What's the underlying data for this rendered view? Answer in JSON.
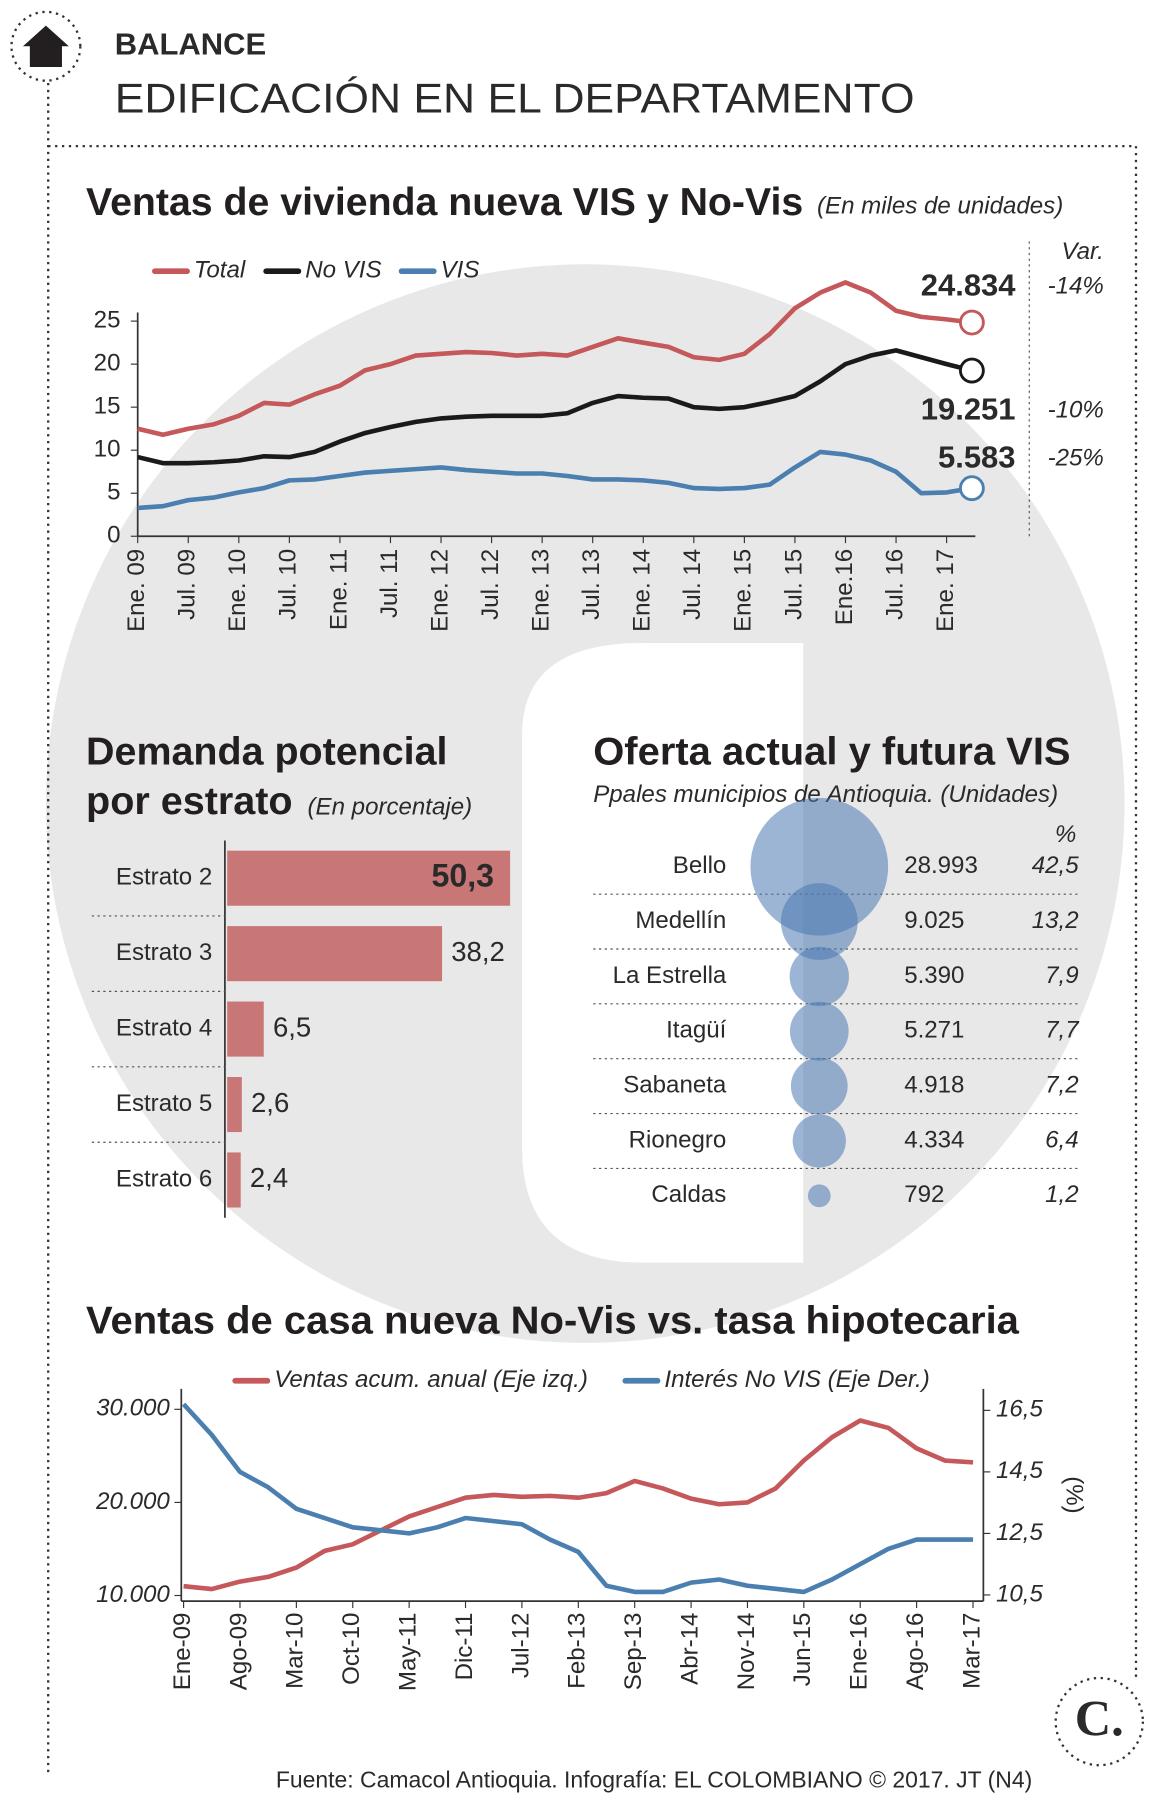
{
  "header": {
    "section": "BALANCE",
    "title": "EDIFICACIÓN EN EL DEPARTAMENTO"
  },
  "chart_data": [
    {
      "type": "line",
      "title": "Ventas de vivienda nueva VIS y No-Vis",
      "subtitle": "(En miles de unidades)",
      "variation_header": "Var.",
      "legend": "top-left",
      "categories": [
        "Ene. 09",
        null,
        "Jul. 09",
        null,
        "Ene. 10",
        null,
        "Jul. 10",
        null,
        "Ene. 11",
        null,
        "Jul. 11",
        null,
        "Ene. 12",
        null,
        "Jul. 12",
        null,
        "Ene. 13",
        null,
        "Jul. 13",
        null,
        "Ene. 14",
        null,
        "Jul. 14",
        null,
        "Ene. 15",
        null,
        "Jul. 15",
        null,
        "Ene.16",
        null,
        "Jul. 16",
        null,
        "Ene. 17",
        null
      ],
      "series": [
        {
          "name": "Total",
          "color": "#c4585a",
          "variation": "-14%",
          "values": [
            12.5,
            11.8,
            12.5,
            13,
            14,
            15.5,
            15.3,
            16.5,
            17.5,
            19.3,
            20,
            21,
            21.2,
            21.4,
            21.3,
            21,
            21.2,
            21,
            22,
            23,
            22.5,
            22,
            20.8,
            20.5,
            21.2,
            23.5,
            26.5,
            28.3,
            29.5,
            28.3,
            26.2,
            25.5,
            25.2,
            24.834
          ],
          "value_labels": [
            null,
            null,
            null,
            null,
            null,
            null,
            null,
            null,
            null,
            null,
            null,
            null,
            null,
            null,
            null,
            null,
            null,
            null,
            null,
            null,
            null,
            null,
            null,
            null,
            null,
            null,
            null,
            null,
            null,
            null,
            null,
            null,
            null,
            "24.834"
          ]
        },
        {
          "name": "No VIS",
          "color": "#1a1a1a",
          "variation": "-10%",
          "values": [
            9.2,
            8.5,
            8.5,
            8.6,
            8.8,
            9.3,
            9.2,
            9.8,
            11,
            12,
            12.7,
            13.3,
            13.7,
            13.9,
            14,
            14,
            14,
            14.3,
            15.5,
            16.3,
            16.1,
            16,
            15,
            14.8,
            15,
            15.6,
            16.3,
            18,
            20,
            21,
            21.6,
            20.8,
            20,
            19.251
          ],
          "value_labels": [
            null,
            null,
            null,
            null,
            null,
            null,
            null,
            null,
            null,
            null,
            null,
            null,
            null,
            null,
            null,
            null,
            null,
            null,
            null,
            null,
            null,
            null,
            null,
            null,
            null,
            null,
            null,
            null,
            null,
            null,
            null,
            null,
            null,
            "19.251"
          ]
        },
        {
          "name": "VIS",
          "color": "#4a7fb0",
          "variation": "-25%",
          "values": [
            3.3,
            3.5,
            4.2,
            4.5,
            5.1,
            5.6,
            6.5,
            6.6,
            7,
            7.4,
            7.6,
            7.8,
            8,
            7.7,
            7.5,
            7.3,
            7.3,
            7,
            6.6,
            6.6,
            6.5,
            6.2,
            5.6,
            5.5,
            5.6,
            6,
            8,
            9.8,
            9.5,
            8.8,
            7.5,
            5,
            5.1,
            5.583
          ],
          "value_labels": [
            null,
            null,
            null,
            null,
            null,
            null,
            null,
            null,
            null,
            null,
            null,
            null,
            null,
            null,
            null,
            null,
            null,
            null,
            null,
            null,
            null,
            null,
            null,
            null,
            null,
            null,
            null,
            null,
            null,
            null,
            null,
            null,
            null,
            "5.583"
          ]
        }
      ],
      "ylim": [
        0,
        26
      ],
      "yticks": [
        0,
        5,
        10,
        15,
        20,
        25
      ]
    },
    {
      "type": "bar",
      "title": [
        "Demanda potencial",
        "por estrato"
      ],
      "subtitle": "(En porcentaje)",
      "categories": [
        "Estrato 2",
        "Estrato 3",
        "Estrato 4",
        "Estrato 5",
        "Estrato 6"
      ],
      "values": [
        50.3,
        38.2,
        6.5,
        2.6,
        2.4
      ],
      "value_labels": [
        "50,3",
        "38,2",
        "6,5",
        "2,6",
        "2,4"
      ],
      "color": "#c97676",
      "xlim": [
        0,
        51
      ]
    },
    {
      "type": "bubble",
      "title": "Oferta actual y futura VIS",
      "subtitle": "Ppales municipios de Antioquia. (Unidades)",
      "share_header": "%",
      "categories": [
        "Bello",
        "Medellín",
        "La Estrella",
        "Itagüí",
        "Sabaneta",
        "Rionegro",
        "Caldas"
      ],
      "values": [
        28993,
        9025,
        5390,
        5271,
        4918,
        4334,
        792
      ],
      "value_labels": [
        "28.993",
        "9.025",
        "5.390",
        "5.271",
        "4.918",
        "4.334",
        "792"
      ],
      "shares": [
        42.5,
        13.2,
        7.9,
        7.7,
        7.2,
        6.4,
        1.2
      ],
      "share_labels": [
        "42,5",
        "13,2",
        "7,9",
        "7,7",
        "7,2",
        "6,4",
        "1,2"
      ],
      "color": "#4a78b0"
    },
    {
      "type": "line",
      "title": "Ventas de casa nueva No-Vis vs. tasa hipotecaria",
      "legend": "top-center",
      "y2_label": "(%)",
      "categories": [
        "Ene-09",
        null,
        "Ago-09",
        null,
        "Mar-10",
        null,
        "Oct-10",
        null,
        "May-11",
        null,
        "Dic-11",
        null,
        "Jul-12",
        null,
        "Feb-13",
        null,
        "Sep-13",
        null,
        "Abr-14",
        null,
        "Nov-14",
        null,
        "Jun-15",
        null,
        "Ene-16",
        null,
        "Ago-16",
        null,
        "Mar-17"
      ],
      "series": [
        {
          "name": "Ventas acum. anual (Eje izq.)",
          "color": "#c4585a",
          "axis": "y",
          "values": [
            11000,
            10700,
            11500,
            12000,
            13000,
            14800,
            15500,
            17000,
            18500,
            19500,
            20500,
            20800,
            20600,
            20700,
            20500,
            21000,
            22300,
            21500,
            20400,
            19800,
            20000,
            21500,
            24500,
            27000,
            28800,
            28000,
            25800,
            24500,
            24300
          ]
        },
        {
          "name": "Interés No VIS (Eje Der.)",
          "color": "#4a7fb0",
          "axis": "y2",
          "values": [
            16.7,
            15.7,
            14.5,
            14,
            13.3,
            13,
            12.7,
            12.6,
            12.5,
            12.7,
            13,
            12.9,
            12.8,
            12.3,
            11.9,
            10.8,
            10.6,
            10.6,
            10.9,
            11,
            10.8,
            10.7,
            10.6,
            11,
            11.5,
            12,
            12.3,
            12.3,
            12.3
          ]
        }
      ],
      "ylim": [
        9400,
        32200
      ],
      "yticks": [
        {
          "value": 10000,
          "label": "10.000"
        },
        {
          "value": 20000,
          "label": "20.000"
        },
        {
          "value": 30000,
          "label": "30.000"
        }
      ],
      "y2lim": [
        10.3,
        17.2
      ],
      "y2ticks": [
        {
          "value": 10.5,
          "label": "10,5"
        },
        {
          "value": 12.5,
          "label": "12,5"
        },
        {
          "value": 14.5,
          "label": "14,5"
        },
        {
          "value": 16.5,
          "label": "16,5"
        }
      ]
    }
  ],
  "footer": {
    "source": "Fuente: Camacol Antioquia. Infografía: EL COLOMBIANO © 2017. JT (N4)",
    "logo": "C."
  }
}
